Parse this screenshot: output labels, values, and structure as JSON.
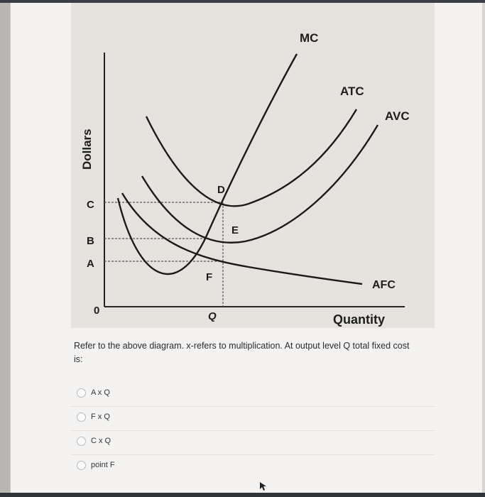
{
  "figure": {
    "labels": {
      "mc": "MC",
      "atc": "ATC",
      "avc": "AVC",
      "afc": "AFC",
      "dollars": "Dollars",
      "quantity": "Quantity",
      "c": "C",
      "b": "B",
      "a": "A",
      "zero": "0",
      "q": "Q",
      "d": "D",
      "e": "E",
      "f": "F"
    }
  },
  "question": {
    "text": "Refer to the above diagram. x-refers to multiplication. At output level Q total fixed cost is:"
  },
  "options": [
    {
      "label": "A x Q"
    },
    {
      "label": "F x Q"
    },
    {
      "label": "C x Q"
    },
    {
      "label": "point F"
    }
  ]
}
